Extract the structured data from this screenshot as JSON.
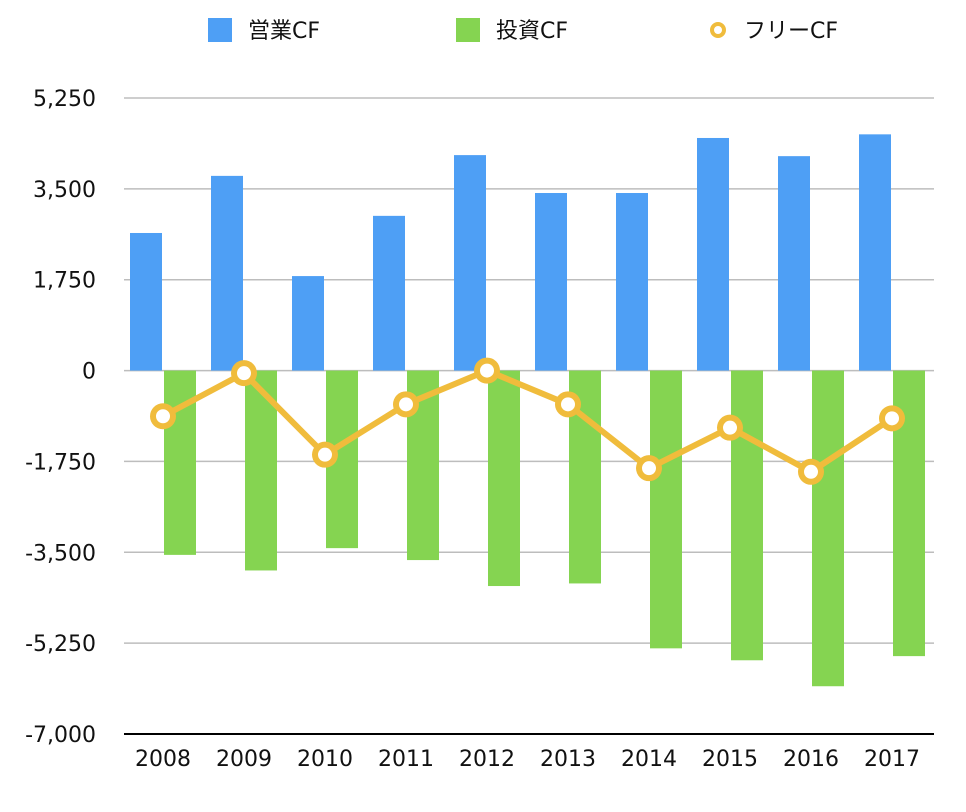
{
  "chart_data": {
    "type": "bar",
    "categories": [
      "2008",
      "2009",
      "2010",
      "2011",
      "2012",
      "2013",
      "2014",
      "2015",
      "2016",
      "2017"
    ],
    "series": [
      {
        "name": "営業CF",
        "kind": "bar",
        "color": "#4e9ff5",
        "values": [
          2650,
          3750,
          1820,
          2980,
          4150,
          3420,
          3420,
          4480,
          4130,
          4550
        ]
      },
      {
        "name": "投資CF",
        "kind": "bar",
        "color": "#85d451",
        "values": [
          -3550,
          -3850,
          -3420,
          -3650,
          -4150,
          -4100,
          -5350,
          -5580,
          -6080,
          -5500
        ]
      },
      {
        "name": "フリーCF",
        "kind": "line",
        "color": "#f0bc3c",
        "values": [
          -880,
          -50,
          -1620,
          -650,
          0,
          -650,
          -1880,
          -1100,
          -1950,
          -920
        ]
      }
    ],
    "yticks": [
      "5,250",
      "3,500",
      "1,750",
      "0",
      "-1,750",
      "-3,500",
      "-5,250",
      "-7,000"
    ],
    "ylim": [
      -7000,
      5250
    ],
    "grid": true,
    "legend_position": "top"
  }
}
